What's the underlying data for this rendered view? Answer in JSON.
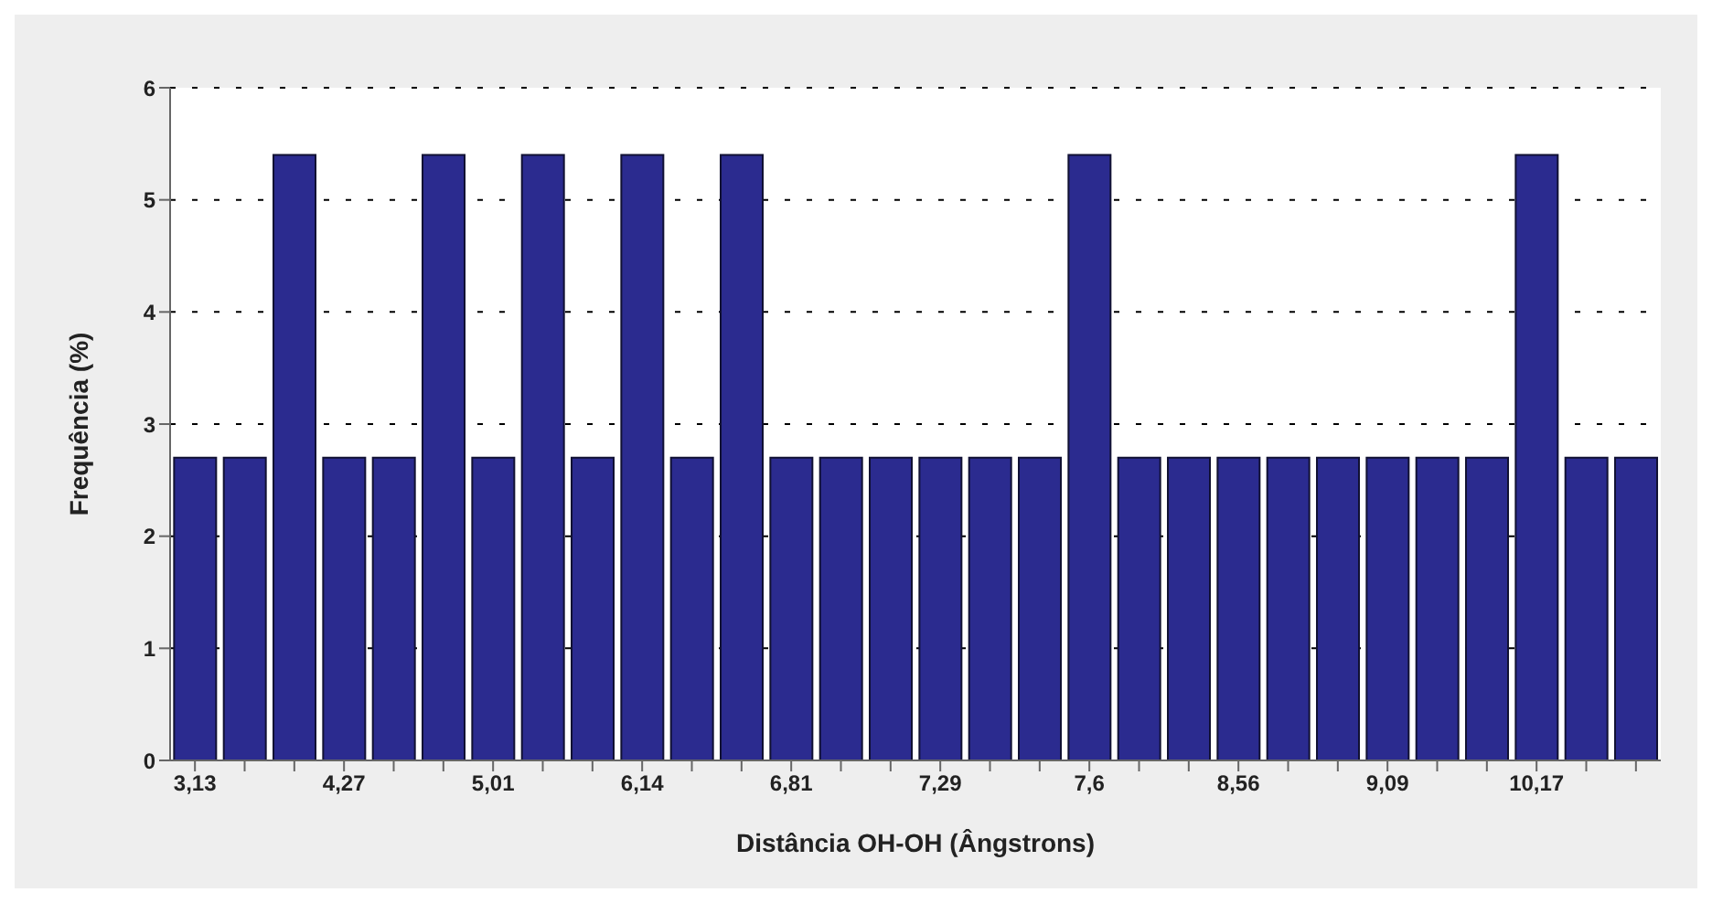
{
  "chart_data": {
    "type": "bar",
    "xlabel": "Distância OH-OH (Ângstrons)",
    "ylabel": "Frequência (%)",
    "categories": [
      "3,13",
      null,
      null,
      "4,27",
      null,
      null,
      "5,01",
      null,
      null,
      "6,14",
      null,
      null,
      "6,81",
      null,
      null,
      "7,29",
      null,
      null,
      "7,6",
      null,
      null,
      "8,56",
      null,
      null,
      "9,09",
      null,
      null,
      "10,17",
      null,
      null
    ],
    "values": [
      2.7,
      2.7,
      5.4,
      2.7,
      2.7,
      5.4,
      2.7,
      5.4,
      2.7,
      5.4,
      2.7,
      5.4,
      2.7,
      2.7,
      2.7,
      2.7,
      2.7,
      2.7,
      5.4,
      2.7,
      2.7,
      2.7,
      2.7,
      2.7,
      2.7,
      2.7,
      2.7,
      5.4,
      2.7,
      2.7
    ],
    "color": "#2b2b8f",
    "ylim": [
      0,
      6
    ],
    "yticks": [
      0,
      1,
      2,
      3,
      4,
      5,
      6
    ],
    "grid": "y"
  }
}
